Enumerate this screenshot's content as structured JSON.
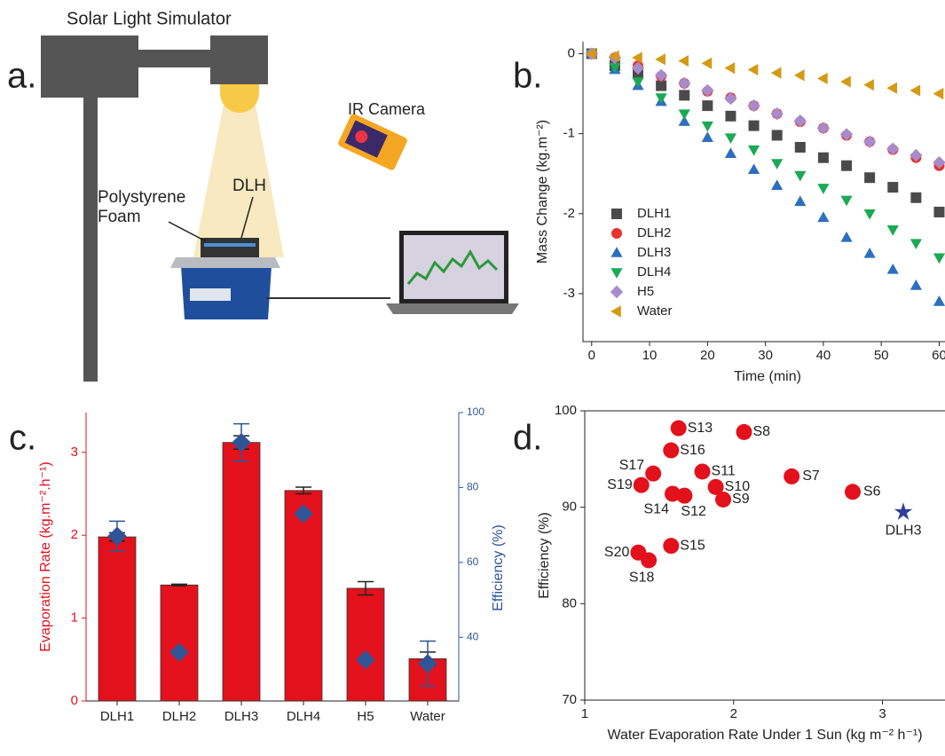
{
  "panel_labels": [
    "a.",
    "b.",
    "c.",
    "d."
  ],
  "diagram": {
    "title": "Solar Light Simulator",
    "camera": "IR Camera",
    "sample": "DLH",
    "foam": "Polystyrene Foam"
  },
  "chart_data": [
    {
      "type": "scatter",
      "xlabel": "Time (min)",
      "ylabel": "Mass Change (kg.m⁻²)",
      "x": [
        0,
        4,
        8,
        12,
        16,
        20,
        24,
        28,
        32,
        36,
        40,
        44,
        48,
        52,
        56,
        60
      ],
      "xlim": [
        -1.5,
        61
      ],
      "xticks": [
        0,
        10,
        20,
        30,
        40,
        50,
        60
      ],
      "ylim": [
        -3.6,
        0.15
      ],
      "yticks": [
        0,
        -1,
        -2,
        -3
      ],
      "legend": "lower left",
      "series": [
        {
          "name": "DLH1",
          "color": "#4a4a4a",
          "marker": "square",
          "values": [
            0,
            -0.15,
            -0.25,
            -0.4,
            -0.52,
            -0.65,
            -0.78,
            -0.9,
            -1.02,
            -1.17,
            -1.3,
            -1.4,
            -1.55,
            -1.67,
            -1.8,
            -1.98
          ]
        },
        {
          "name": "DLH2",
          "color": "#e8332e",
          "marker": "circle",
          "values": [
            0,
            -0.05,
            -0.15,
            -0.28,
            -0.37,
            -0.47,
            -0.55,
            -0.65,
            -0.75,
            -0.85,
            -0.93,
            -1.02,
            -1.1,
            -1.2,
            -1.3,
            -1.4
          ]
        },
        {
          "name": "DLH3",
          "color": "#2d6fbf",
          "marker": "triangle-up",
          "values": [
            0,
            -0.2,
            -0.4,
            -0.6,
            -0.85,
            -1.05,
            -1.25,
            -1.45,
            -1.65,
            -1.85,
            -2.05,
            -2.3,
            -2.5,
            -2.7,
            -2.9,
            -3.1
          ]
        },
        {
          "name": "DLH4",
          "color": "#1aaa55",
          "marker": "triangle-down",
          "values": [
            0,
            -0.17,
            -0.35,
            -0.55,
            -0.75,
            -0.9,
            -1.05,
            -1.2,
            -1.37,
            -1.52,
            -1.68,
            -1.83,
            -2.0,
            -2.2,
            -2.37,
            -2.55
          ]
        },
        {
          "name": "H5",
          "color": "#a78bca",
          "marker": "diamond",
          "values": [
            0,
            -0.05,
            -0.18,
            -0.27,
            -0.37,
            -0.46,
            -0.56,
            -0.65,
            -0.75,
            -0.84,
            -0.93,
            -1.01,
            -1.1,
            -1.19,
            -1.27,
            -1.36
          ]
        },
        {
          "name": "Water",
          "color": "#d49a14",
          "marker": "triangle-left",
          "values": [
            0,
            -0.03,
            -0.05,
            -0.07,
            -0.09,
            -0.12,
            -0.18,
            -0.2,
            -0.24,
            -0.27,
            -0.31,
            -0.35,
            -0.39,
            -0.43,
            -0.46,
            -0.5
          ]
        }
      ]
    },
    {
      "type": "bar",
      "ylabel": "Evaporation Rate (kg.m⁻².h⁻¹)",
      "y2label": "Efficiency (%)",
      "categories": [
        "DLH1",
        "DLH2",
        "DLH3",
        "DLH4",
        "H5",
        "Water"
      ],
      "ylim": [
        0,
        3.48
      ],
      "yticks": [
        0,
        1,
        2,
        3
      ],
      "y2lim": [
        23,
        100
      ],
      "y2ticks": [
        40,
        60,
        80,
        100
      ],
      "series": [
        {
          "color": "#e3111b",
          "values": [
            1.98,
            1.4,
            3.12,
            2.54,
            1.36,
            0.51
          ],
          "errors": [
            0.05,
            0.01,
            0.08,
            0.04,
            0.08,
            0.08
          ]
        },
        {
          "color": "#2f5597",
          "marker": "diamond",
          "axis": "y2",
          "values": [
            67,
            36,
            92,
            73,
            34,
            33
          ],
          "errors": [
            4,
            0,
            5,
            0,
            0,
            6
          ]
        }
      ]
    },
    {
      "type": "scatter",
      "xlabel": "Water Evaporation Rate Under 1 Sun (kg m⁻² h⁻¹)",
      "ylabel": "Efficiency (%)",
      "xlim": [
        1,
        3.42
      ],
      "xticks": [
        1,
        2,
        3
      ],
      "ylim": [
        70,
        100
      ],
      "yticks": [
        70,
        80,
        90,
        100
      ],
      "series": [
        {
          "color": "#e3111b",
          "marker": "circle",
          "x": [
            1.63,
            2.07,
            1.58,
            1.46,
            1.79,
            2.39,
            1.38,
            1.88,
            1.59,
            1.67,
            2.8,
            1.93,
            1.58,
            1.36,
            1.43
          ],
          "values": [
            98.2,
            97.8,
            95.9,
            93.5,
            93.7,
            93.2,
            92.3,
            92.1,
            91.4,
            91.2,
            91.6,
            90.8,
            86.0,
            85.3,
            84.5
          ],
          "point_labels": [
            "S13",
            "S8",
            "S16",
            "S17",
            "S11",
            "S7",
            "S19",
            "S10",
            "S14",
            "S12",
            "S6",
            "S9",
            "S15",
            "S20",
            "S18"
          ]
        },
        {
          "color": "#2f3f99",
          "marker": "star",
          "x": [
            3.14
          ],
          "values": [
            89.5
          ],
          "point_labels": [
            "DLH3"
          ]
        }
      ]
    }
  ]
}
